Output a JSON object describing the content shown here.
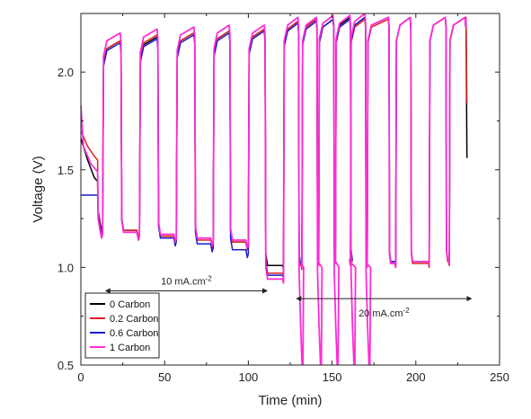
{
  "chart_data": {
    "type": "line",
    "xlabel": "Time (min)",
    "ylabel": "Voltage (V)",
    "xlim": [
      0,
      250
    ],
    "ylim": [
      0.5,
      2.3
    ],
    "xticks": [
      0,
      50,
      100,
      150,
      200,
      250
    ],
    "yticks": [
      0.5,
      1.0,
      1.5,
      2.0
    ],
    "ytick_labels": [
      "0.5",
      "1.0",
      "1.5",
      "2.0"
    ],
    "grid": false,
    "legend_position": "bottom-left",
    "series": [
      {
        "name": "0 Carbon",
        "color": "#000000",
        "initial": [
          [
            0,
            1.66
          ],
          [
            4,
            1.55
          ],
          [
            8,
            1.46
          ],
          [
            10,
            1.44
          ]
        ],
        "final": [
          [
            230,
            2.27
          ],
          [
            230.5,
            1.56
          ]
        ],
        "lows": [
          1.23,
          1.19,
          1.16,
          1.15,
          1.13,
          1.01,
          1.02,
          1.04,
          1.05,
          1.04,
          1.03,
          1.03,
          1.03,
          1.04,
          1.03,
          1.02
        ],
        "highs": [
          2.16,
          2.18,
          2.2,
          2.21,
          2.22,
          2.26,
          2.27,
          2.27,
          2.28,
          2.28,
          2.28,
          2.28,
          2.28
        ]
      },
      {
        "name": "0.2 Carbon",
        "color": "#e02020",
        "initial": [
          [
            0,
            1.7
          ],
          [
            4,
            1.62
          ],
          [
            8,
            1.57
          ],
          [
            10,
            1.55
          ]
        ],
        "final": [
          [
            230,
            2.28
          ],
          [
            230.5,
            1.84
          ]
        ],
        "lows": [
          1.22,
          1.19,
          1.16,
          1.14,
          1.13,
          0.97,
          1.01,
          1.03,
          1.04,
          1.03,
          1.02,
          1.02,
          1.02,
          1.03,
          1.02,
          1.01
        ],
        "highs": [
          2.16,
          2.19,
          2.2,
          2.21,
          2.22,
          2.26,
          2.27,
          2.27,
          2.27,
          2.27,
          2.27,
          2.28,
          2.28
        ]
      },
      {
        "name": "0.6 Carbon",
        "color": "#1c1cc8",
        "initial": [
          [
            0,
            1.37
          ],
          [
            10,
            1.37
          ]
        ],
        "final": [
          [
            230,
            2.27
          ]
        ],
        "lows": [
          1.21,
          1.18,
          1.15,
          1.12,
          1.09,
          0.96,
          1.02,
          1.04,
          1.05,
          1.04,
          1.04,
          1.03,
          1.03,
          1.04,
          1.03,
          1.03
        ],
        "highs": [
          2.15,
          2.17,
          2.19,
          2.2,
          2.21,
          2.25,
          2.26,
          2.27,
          2.27,
          2.28,
          2.28,
          2.28,
          2.28
        ]
      },
      {
        "name": "1 Carbon",
        "color": "#ff2cd6",
        "initial": [
          [
            0,
            1.83
          ],
          [
            1.5,
            1.62
          ],
          [
            6,
            1.53
          ],
          [
            10,
            1.49
          ]
        ],
        "final": [
          [
            230,
            2.27
          ]
        ],
        "lows": [
          1.19,
          1.18,
          1.17,
          1.15,
          1.14,
          0.94,
          1.02,
          1.03,
          1.04,
          1.03,
          1.02,
          1.02,
          1.03,
          1.04,
          1.03,
          1.02
        ],
        "highs": [
          2.2,
          2.22,
          2.23,
          2.24,
          2.24,
          2.28,
          2.28,
          2.29,
          2.29,
          2.3,
          2.28,
          2.28,
          2.28
        ]
      }
    ],
    "annotations": [
      {
        "text": "10 mA.cm",
        "sup": "-2",
        "from_x": 16,
        "to_x": 110,
        "y": 0.88
      },
      {
        "text": "20 mA.cm",
        "sup": "-2",
        "from_x": 130,
        "to_x": 232,
        "y": 0.84
      }
    ]
  }
}
